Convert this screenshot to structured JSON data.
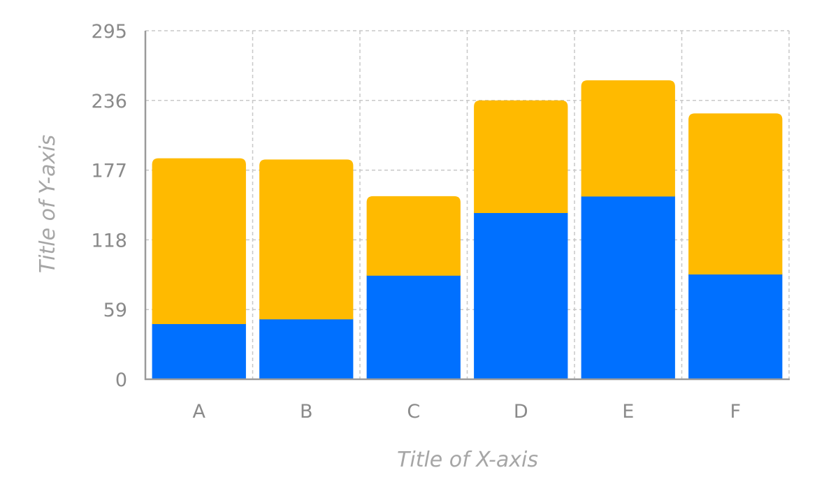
{
  "chart_data": {
    "type": "bar",
    "stacked": true,
    "categories": [
      "A",
      "B",
      "C",
      "D",
      "E",
      "F"
    ],
    "series": [
      {
        "values": [
          52,
          56,
          93,
          146,
          160,
          94
        ],
        "color": "#0070ff"
      },
      {
        "values": [
          135,
          130,
          62,
          90,
          93,
          131
        ],
        "color": "#ffba00"
      }
    ],
    "xlabel": "Title of X-axis",
    "ylabel": "Title of Y-axis",
    "ylim": [
      0,
      295
    ],
    "yticks": [
      "0",
      "59",
      "118",
      "177",
      "236",
      "295"
    ],
    "grid": true
  }
}
